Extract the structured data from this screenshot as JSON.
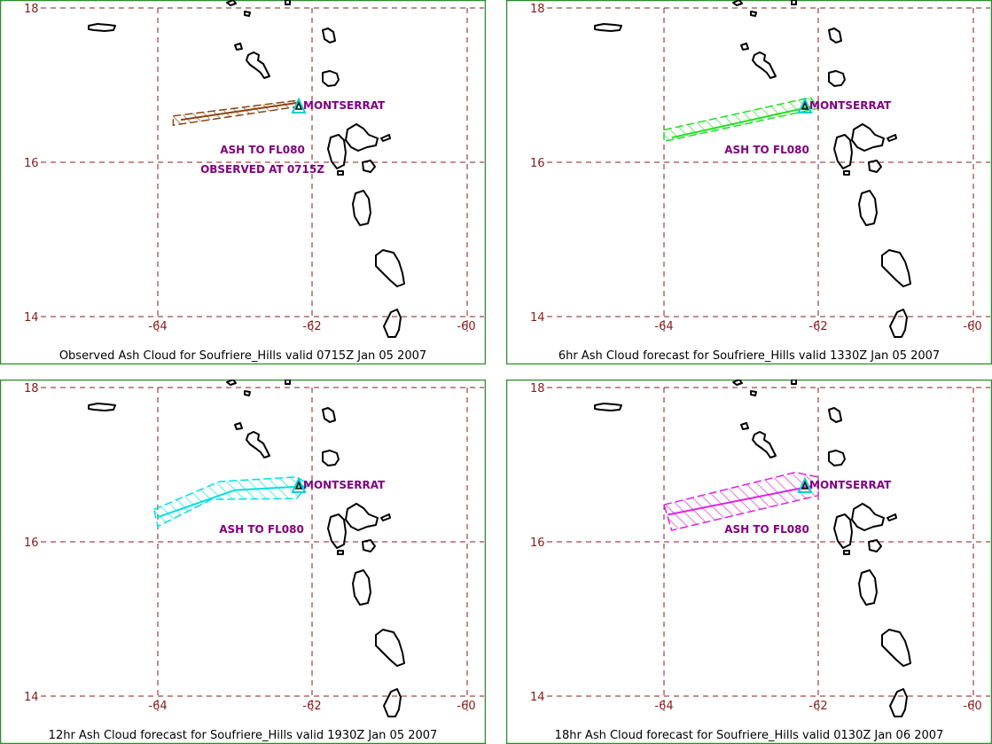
{
  "colors": {
    "frame": "#2e8b2e",
    "grid": "#8b1a1a",
    "tick_label": "#8b1a1a",
    "coast": "#000000",
    "annotation": "#800080",
    "volcano": "#00d0d0"
  },
  "map": {
    "lat_ticks": [
      "18",
      "16",
      "14"
    ],
    "lon_ticks": [
      "-64",
      "-62",
      "-60"
    ],
    "volcano_label": "MONTSERRAT"
  },
  "panels": [
    {
      "caption": "Observed Ash Cloud for Soufriere_Hills valid 0715Z Jan 05 2007",
      "cloud_color": "#8b4513",
      "labels": [
        "ASH TO FL080",
        "OBSERVED AT 0715Z"
      ],
      "cloud_polygon": [
        [
          -63.8,
          16.6
        ],
        [
          -62.2,
          16.8
        ],
        [
          -62.2,
          16.72
        ],
        [
          -63.8,
          16.48
        ]
      ],
      "axis_line": [
        [
          -63.7,
          16.55
        ],
        [
          -62.2,
          16.77
        ]
      ]
    },
    {
      "caption": "6hr Ash Cloud forecast for Soufriere_Hills valid 1330Z Jan 05 2007",
      "cloud_color": "#22dd22",
      "labels": [
        "ASH TO FL080"
      ],
      "cloud_polygon": [
        [
          -64.0,
          16.42
        ],
        [
          -62.1,
          16.84
        ],
        [
          -62.0,
          16.7
        ],
        [
          -64.0,
          16.27
        ]
      ],
      "axis_line": [
        [
          -63.9,
          16.32
        ],
        [
          -62.1,
          16.72
        ]
      ]
    },
    {
      "caption": "12hr Ash Cloud forecast for Soufriere_Hills valid 1930Z Jan 05 2007",
      "cloud_color": "#00e0e0",
      "labels": [
        "ASH TO FL080"
      ],
      "cloud_polygon": [
        [
          -64.05,
          16.42
        ],
        [
          -63.2,
          16.78
        ],
        [
          -62.2,
          16.84
        ],
        [
          -62.05,
          16.75
        ],
        [
          -62.2,
          16.56
        ],
        [
          -63.3,
          16.55
        ],
        [
          -64.0,
          16.2
        ]
      ],
      "axis_line": [
        [
          -64.0,
          16.32
        ],
        [
          -63.0,
          16.67
        ],
        [
          -62.1,
          16.72
        ]
      ]
    },
    {
      "caption": "18hr Ash Cloud forecast for Soufriere_Hills valid 0130Z Jan 06 2007",
      "cloud_color": "#dd22dd",
      "labels": [
        "ASH TO FL080"
      ],
      "cloud_polygon": [
        [
          -64.0,
          16.48
        ],
        [
          -62.3,
          16.9
        ],
        [
          -62.0,
          16.84
        ],
        [
          -62.0,
          16.6
        ],
        [
          -63.9,
          16.15
        ]
      ],
      "axis_line": [
        [
          -63.95,
          16.35
        ],
        [
          -62.1,
          16.72
        ]
      ]
    }
  ]
}
